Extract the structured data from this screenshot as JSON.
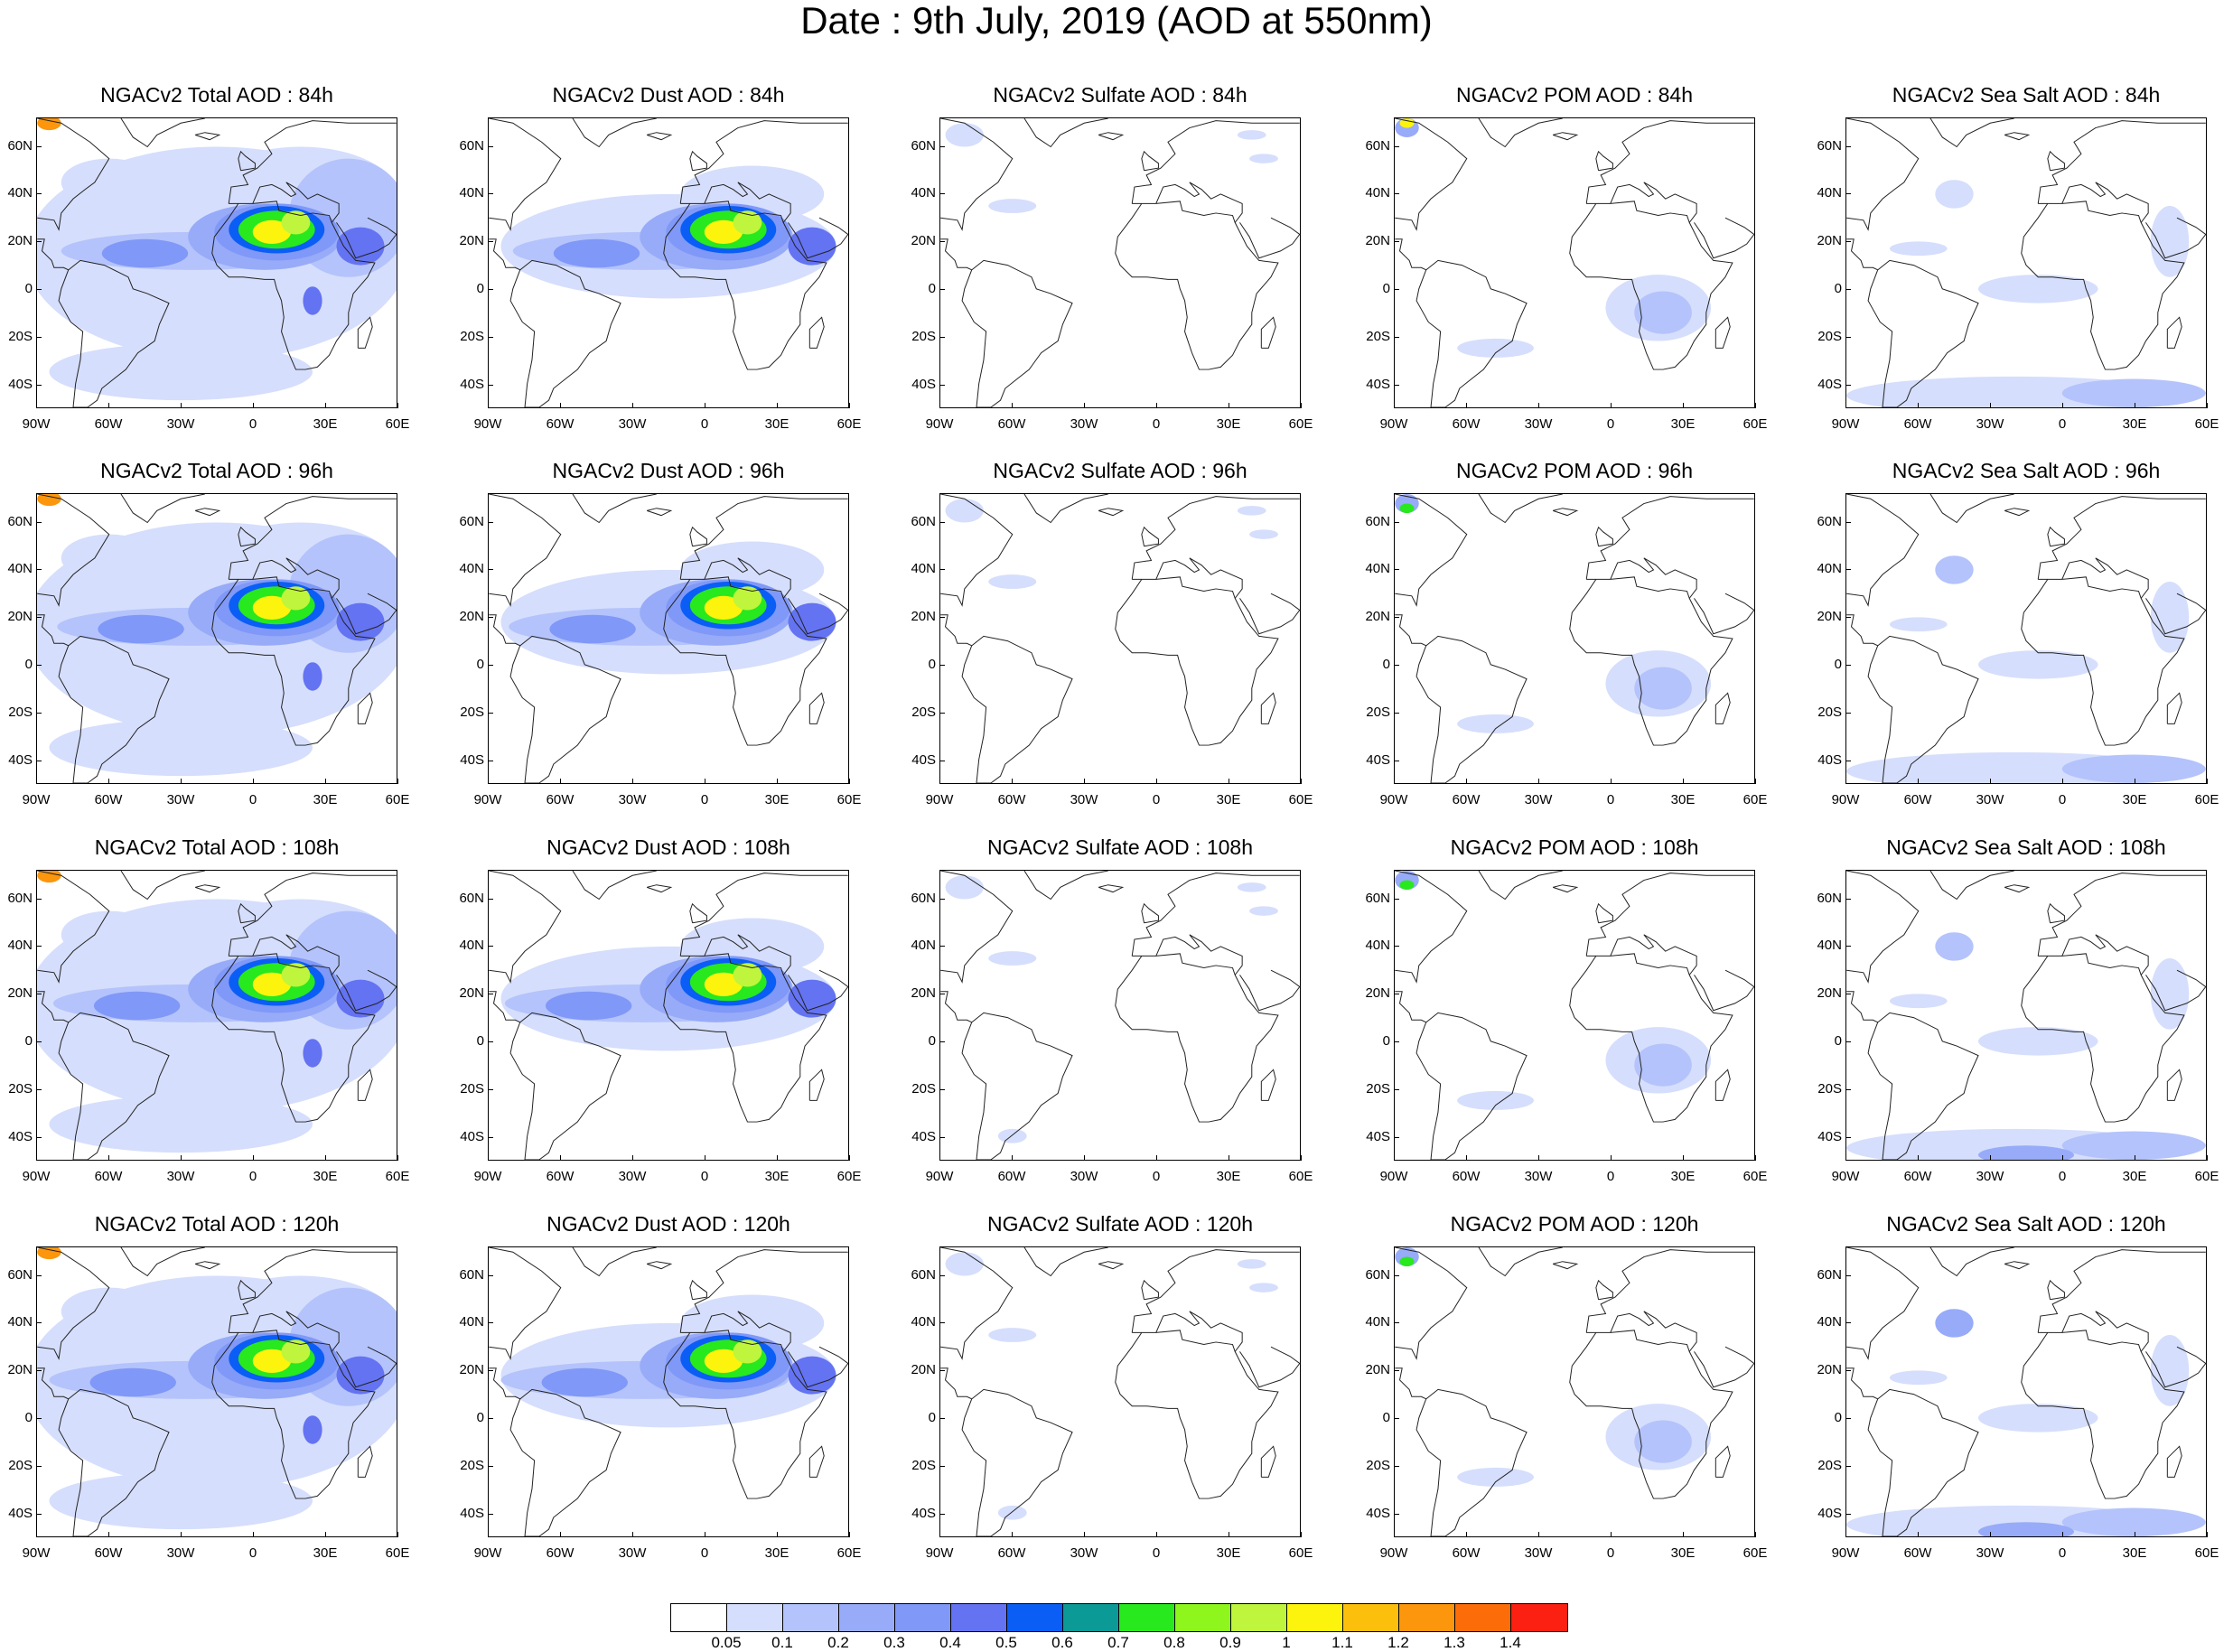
{
  "title": "Date : 9th July, 2019 (AOD at 550nm)",
  "lat_labels": [
    "60N",
    "40N",
    "20N",
    "0",
    "20S",
    "40S"
  ],
  "lon_labels": [
    "90W",
    "60W",
    "30W",
    "0",
    "30E",
    "60E"
  ],
  "panels": [
    {
      "title": "NGACv2 Total AOD : 84h",
      "species": "total",
      "lead": 84
    },
    {
      "title": "NGACv2 Dust AOD : 84h",
      "species": "dust",
      "lead": 84
    },
    {
      "title": "NGACv2 Sulfate AOD : 84h",
      "species": "sulfate",
      "lead": 84
    },
    {
      "title": "NGACv2 POM AOD : 84h",
      "species": "pom",
      "lead": 84
    },
    {
      "title": "NGACv2 Sea Salt AOD : 84h",
      "species": "seasalt",
      "lead": 84
    },
    {
      "title": "NGACv2 Total AOD : 96h",
      "species": "total",
      "lead": 96
    },
    {
      "title": "NGACv2 Dust AOD : 96h",
      "species": "dust",
      "lead": 96
    },
    {
      "title": "NGACv2 Sulfate AOD : 96h",
      "species": "sulfate",
      "lead": 96
    },
    {
      "title": "NGACv2 POM AOD : 96h",
      "species": "pom",
      "lead": 96
    },
    {
      "title": "NGACv2 Sea Salt AOD : 96h",
      "species": "seasalt",
      "lead": 96
    },
    {
      "title": "NGACv2 Total AOD : 108h",
      "species": "total",
      "lead": 108
    },
    {
      "title": "NGACv2 Dust AOD : 108h",
      "species": "dust",
      "lead": 108
    },
    {
      "title": "NGACv2 Sulfate AOD : 108h",
      "species": "sulfate",
      "lead": 108
    },
    {
      "title": "NGACv2 POM AOD : 108h",
      "species": "pom",
      "lead": 108
    },
    {
      "title": "NGACv2 Sea Salt AOD : 108h",
      "species": "seasalt",
      "lead": 108
    },
    {
      "title": "NGACv2 Total AOD : 120h",
      "species": "total",
      "lead": 120
    },
    {
      "title": "NGACv2 Dust AOD : 120h",
      "species": "dust",
      "lead": 120
    },
    {
      "title": "NGACv2 Sulfate AOD : 120h",
      "species": "sulfate",
      "lead": 120
    },
    {
      "title": "NGACv2 POM AOD : 120h",
      "species": "pom",
      "lead": 120
    },
    {
      "title": "NGACv2 Sea Salt  AOD : 120h",
      "species": "seasalt",
      "lead": 120
    }
  ],
  "colorbar": {
    "colors": [
      "#ffffff",
      "#d5defc",
      "#b4c3fb",
      "#97abf9",
      "#8098f7",
      "#6473f2",
      "#0a5ef5",
      "#0c9a96",
      "#28e81e",
      "#8ef51d",
      "#bff53c",
      "#fcf40c",
      "#fcbf0c",
      "#fc960c",
      "#fc6d0a",
      "#fc2012"
    ],
    "labels": [
      "0.05",
      "0.1",
      "0.2",
      "0.3",
      "0.4",
      "0.5",
      "0.6",
      "0.7",
      "0.8",
      "0.9",
      "1",
      "1.1",
      "1.2",
      "1.3",
      "1.4"
    ]
  }
}
